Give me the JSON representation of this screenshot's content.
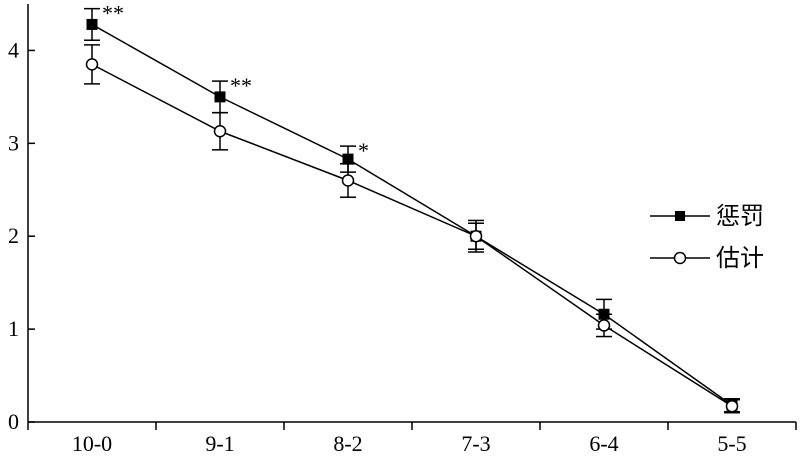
{
  "chart_data": {
    "type": "line",
    "categories": [
      "10-0",
      "9-1",
      "8-2",
      "7-3",
      "6-4",
      "5-5"
    ],
    "ylim": [
      0,
      4.5
    ],
    "yticks": [
      0,
      1,
      2,
      3,
      4
    ],
    "ytick_labels": [
      "0",
      "1",
      "2",
      "3",
      "4"
    ],
    "legend_position": "right",
    "grid": false,
    "series": [
      {
        "name": "惩罚",
        "marker": "filled-square",
        "values": [
          4.28,
          3.5,
          2.83,
          2.0,
          1.16,
          0.18
        ],
        "errors": [
          0.17,
          0.17,
          0.14,
          0.17,
          0.16,
          0.07
        ]
      },
      {
        "name": "估计",
        "marker": "open-circle",
        "values": [
          3.85,
          3.13,
          2.6,
          2.0,
          1.04,
          0.17
        ],
        "errors": [
          0.21,
          0.2,
          0.18,
          0.14,
          0.12,
          0.07
        ]
      }
    ],
    "annotations": [
      "**",
      "**",
      "*"
    ]
  }
}
